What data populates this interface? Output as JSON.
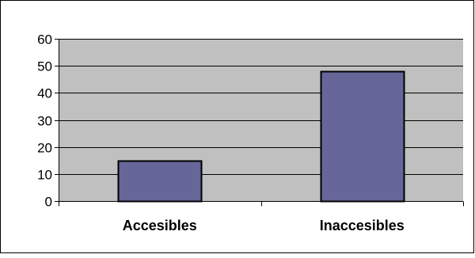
{
  "chart_data": {
    "type": "bar",
    "categories": [
      "Accesibles",
      "Inaccesibles"
    ],
    "values": [
      15,
      48
    ],
    "ylim": [
      0,
      60
    ],
    "yticks": [
      0,
      10,
      20,
      30,
      40,
      50,
      60
    ],
    "grid": true,
    "legend": "none",
    "colors": {
      "bar_fill": "#666699",
      "plot_background": "#c0c0c0",
      "gridline": "#000000",
      "outline": "#000000"
    }
  }
}
